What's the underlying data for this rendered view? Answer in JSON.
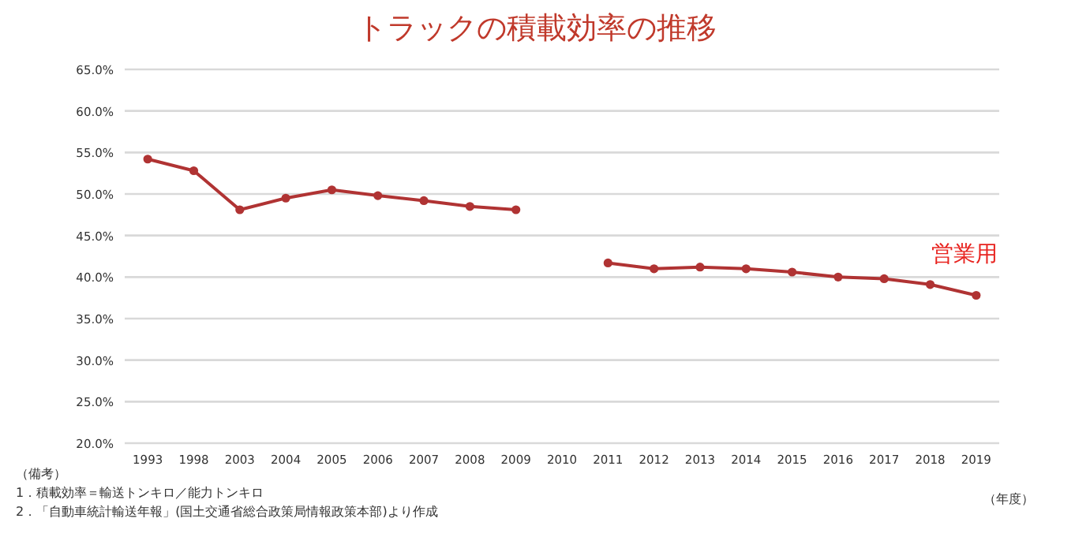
{
  "chart_data": {
    "type": "line",
    "title": "トラックの積載効率の推移",
    "xlabel": "（年度）",
    "categories": [
      "1993",
      "1998",
      "2003",
      "2004",
      "2005",
      "2006",
      "2007",
      "2008",
      "2009",
      "2010",
      "2011",
      "2012",
      "2013",
      "2014",
      "2015",
      "2016",
      "2017",
      "2018",
      "2019"
    ],
    "series": [
      {
        "name": "営業用",
        "color": "#b03333",
        "values": [
          54.2,
          52.8,
          48.1,
          49.5,
          50.5,
          49.8,
          49.2,
          48.5,
          48.1,
          null,
          41.7,
          41.0,
          41.2,
          41.0,
          40.6,
          40.0,
          39.8,
          39.1,
          37.8
        ]
      }
    ],
    "ylim": [
      20,
      65
    ],
    "yticks": [
      {
        "value": 20,
        "label": "20.0%"
      },
      {
        "value": 25,
        "label": "25.0%"
      },
      {
        "value": 30,
        "label": "30.0%"
      },
      {
        "value": 35,
        "label": "35.0%"
      },
      {
        "value": 40,
        "label": "40.0%"
      },
      {
        "value": 45,
        "label": "45.0%"
      },
      {
        "value": 50,
        "label": "50.0%"
      },
      {
        "value": 55,
        "label": "55.0%"
      },
      {
        "value": 60,
        "label": "60.0%"
      },
      {
        "value": 65,
        "label": "65.0%"
      }
    ],
    "grid": "y",
    "marker": "circle",
    "line_style": "solid",
    "legend": false,
    "annotations": [
      "（備考）",
      "1．積載効率＝輸送トンキロ／能力トンキロ",
      "2．「自動車統計輸送年報」(国土交通省総合政策局情報政策本部)より作成"
    ]
  }
}
